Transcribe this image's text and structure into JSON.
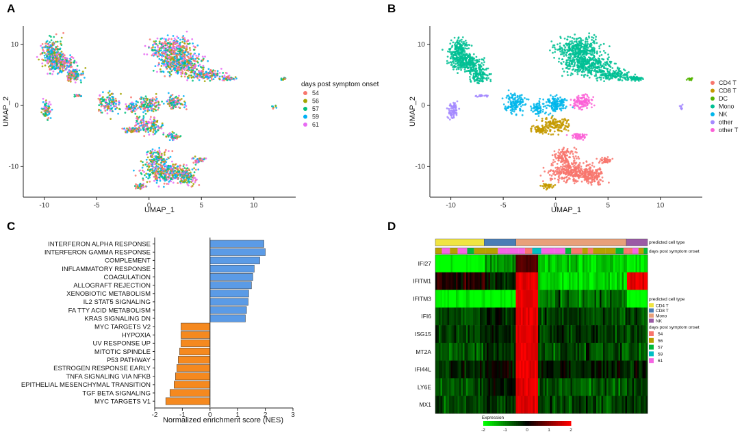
{
  "panels": {
    "A": {
      "letter": "A",
      "xlabel": "UMAP_1",
      "ylabel": "UMAP_2",
      "xticks": [
        "-10",
        "-5",
        "0",
        "5",
        "10"
      ],
      "yticks": [
        "10",
        "0",
        "-10"
      ],
      "legend_title": "days post symptom onset",
      "legend": [
        {
          "label": "54",
          "color": "#F8766D"
        },
        {
          "label": "56",
          "color": "#A3A500"
        },
        {
          "label": "57",
          "color": "#00BF7D"
        },
        {
          "label": "59",
          "color": "#00B0F6"
        },
        {
          "label": "61",
          "color": "#E76BF3"
        }
      ]
    },
    "B": {
      "letter": "B",
      "xlabel": "UMAP_1",
      "ylabel": "UMAP_2",
      "xticks": [
        "-10",
        "-5",
        "0",
        "5",
        "10"
      ],
      "yticks": [
        "10",
        "0",
        "-10"
      ],
      "legend": [
        {
          "label": "CD4 T",
          "color": "#F8766D"
        },
        {
          "label": "CD8 T",
          "color": "#C49A00"
        },
        {
          "label": "DC",
          "color": "#53B400"
        },
        {
          "label": "Mono",
          "color": "#00C094"
        },
        {
          "label": "NK",
          "color": "#00B6EB"
        },
        {
          "label": "other",
          "color": "#A58AFF"
        },
        {
          "label": "other T",
          "color": "#FB61D7"
        }
      ]
    },
    "C": {
      "letter": "C",
      "xlabel": "Normalized enrichment score (NES)",
      "pos_color": "#5B9BE6",
      "neg_color": "#F5891F"
    },
    "D": {
      "letter": "D",
      "top_bar_labels": [
        "predicted cell type",
        "days post symptom onset"
      ],
      "genes": [
        "IFI27",
        "IFITM1",
        "IFITM3",
        "IFI6",
        "ISG15",
        "MT2A",
        "IFI44L",
        "LY6E",
        "MX1"
      ],
      "legend_celltype_title": "predicted cell type",
      "legend_celltype": [
        {
          "label": "CD4 T",
          "color": "#F0E442"
        },
        {
          "label": "CD8 T",
          "color": "#4A7DB5"
        },
        {
          "label": "Mono",
          "color": "#E8A07A"
        },
        {
          "label": "NK",
          "color": "#9B5BA5"
        }
      ],
      "legend_days_title": "days post symptom onset",
      "legend_days": [
        {
          "label": "54",
          "color": "#F8766D"
        },
        {
          "label": "56",
          "color": "#B79F00"
        },
        {
          "label": "57",
          "color": "#00BA38"
        },
        {
          "label": "59",
          "color": "#00BFC4"
        },
        {
          "label": "61",
          "color": "#F564E3"
        }
      ],
      "colorbar_title": "Expression",
      "colorbar_ticks": [
        "-2",
        "-1",
        "0",
        "1",
        "2"
      ]
    }
  },
  "chart_data": [
    {
      "type": "scatter",
      "panel": "A",
      "title": "",
      "xlabel": "UMAP_1",
      "ylabel": "UMAP_2",
      "xlim": [
        -12,
        14
      ],
      "ylim": [
        -15,
        13
      ],
      "color_by": "days post symptom onset",
      "groups": [
        "54",
        "56",
        "57",
        "59",
        "61"
      ]
    },
    {
      "type": "scatter",
      "panel": "B",
      "title": "",
      "xlabel": "UMAP_1",
      "ylabel": "UMAP_2",
      "xlim": [
        -12,
        14
      ],
      "ylim": [
        -15,
        13
      ],
      "color_by": "predicted cell type",
      "groups": [
        "CD4 T",
        "CD8 T",
        "DC",
        "Mono",
        "NK",
        "other",
        "other T"
      ]
    },
    {
      "type": "bar",
      "panel": "C",
      "orientation": "horizontal",
      "xlabel": "Normalized enrichment score (NES)",
      "xlim": [
        -2,
        3
      ],
      "xticks": [
        -2,
        -1,
        0,
        1,
        2,
        3
      ],
      "categories": [
        "INTERFERON ALPHA RESPONSE",
        "INTERFERON GAMMA RESPONSE",
        "COMPLEMENT",
        "INFLAMMATORY RESPONSE",
        "COAGULATION",
        "ALLOGRAFT REJECTION",
        "XENOBIOTIC METABOLISM",
        "IL2 STAT5 SIGNALING",
        "FA TTY ACID METABOLISM",
        "KRAS SIGNALING DN",
        "MYC TARGETS V2",
        "HYPOXIA",
        "UV RESPONSE UP",
        "MITOTIC SPINDLE",
        "P53 PATHWAY",
        "ESTROGEN RESPONSE EARLY",
        "TNFA SIGNALING VIA NFKB",
        "EPITHELIAL MESENCHYMAL TRANSITION",
        "TGF BETA SIGNALING",
        "MYC TARGETS V1"
      ],
      "values": [
        1.95,
        2.0,
        1.8,
        1.6,
        1.55,
        1.5,
        1.4,
        1.38,
        1.32,
        1.28,
        -1.05,
        -1.05,
        -1.05,
        -1.1,
        -1.15,
        -1.2,
        -1.25,
        -1.3,
        -1.45,
        -1.6
      ]
    },
    {
      "type": "heatmap",
      "panel": "D",
      "rows": [
        "IFI27",
        "IFITM1",
        "IFITM3",
        "IFI6",
        "ISG15",
        "MT2A",
        "IFI44L",
        "LY6E",
        "MX1"
      ],
      "column_groups": [
        "CD4 T",
        "CD8 T",
        "Mono",
        "NK"
      ],
      "column_group_widths": [
        0.23,
        0.15,
        0.52,
        0.1
      ],
      "color_scale": {
        "min": -2,
        "max": 2,
        "low": "#00FF00",
        "mid": "#000000",
        "high": "#FF0000"
      },
      "colorbar_label": "Expression"
    }
  ]
}
